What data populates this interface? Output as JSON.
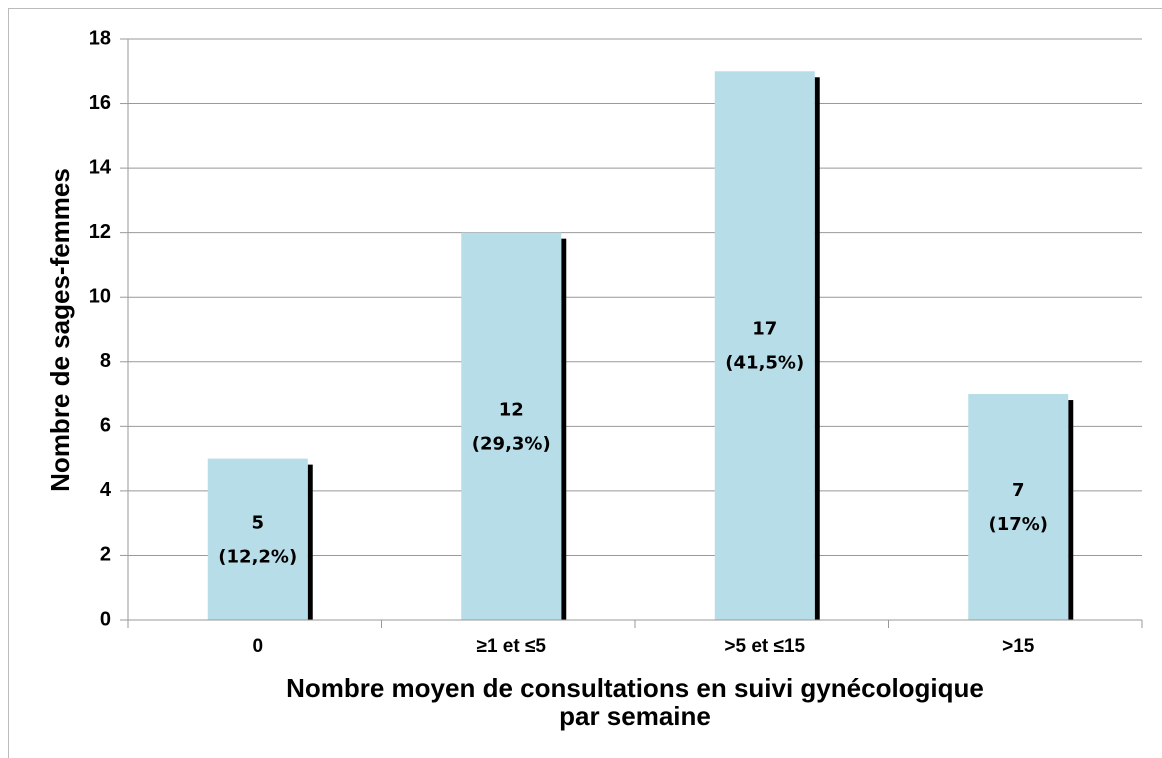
{
  "chart_data": {
    "type": "bar",
    "categories": [
      "0",
      "≥1 et ≤5",
      ">5 et ≤15",
      ">15"
    ],
    "values": [
      5,
      12,
      17,
      7
    ],
    "percent_labels": [
      "(12,2%)",
      "(29,3%)",
      "(41,5%)",
      "(17%)"
    ],
    "color": "#b7dde8",
    "y_label": "Nombre de sages-femmes",
    "x_label": [
      "Nombre moyen de consultations en suivi gynécologique",
      "par semaine"
    ],
    "ylim": [
      0,
      18
    ],
    "yticks": [
      0,
      2,
      4,
      6,
      8,
      10,
      12,
      14,
      16,
      18
    ],
    "grid": true
  }
}
